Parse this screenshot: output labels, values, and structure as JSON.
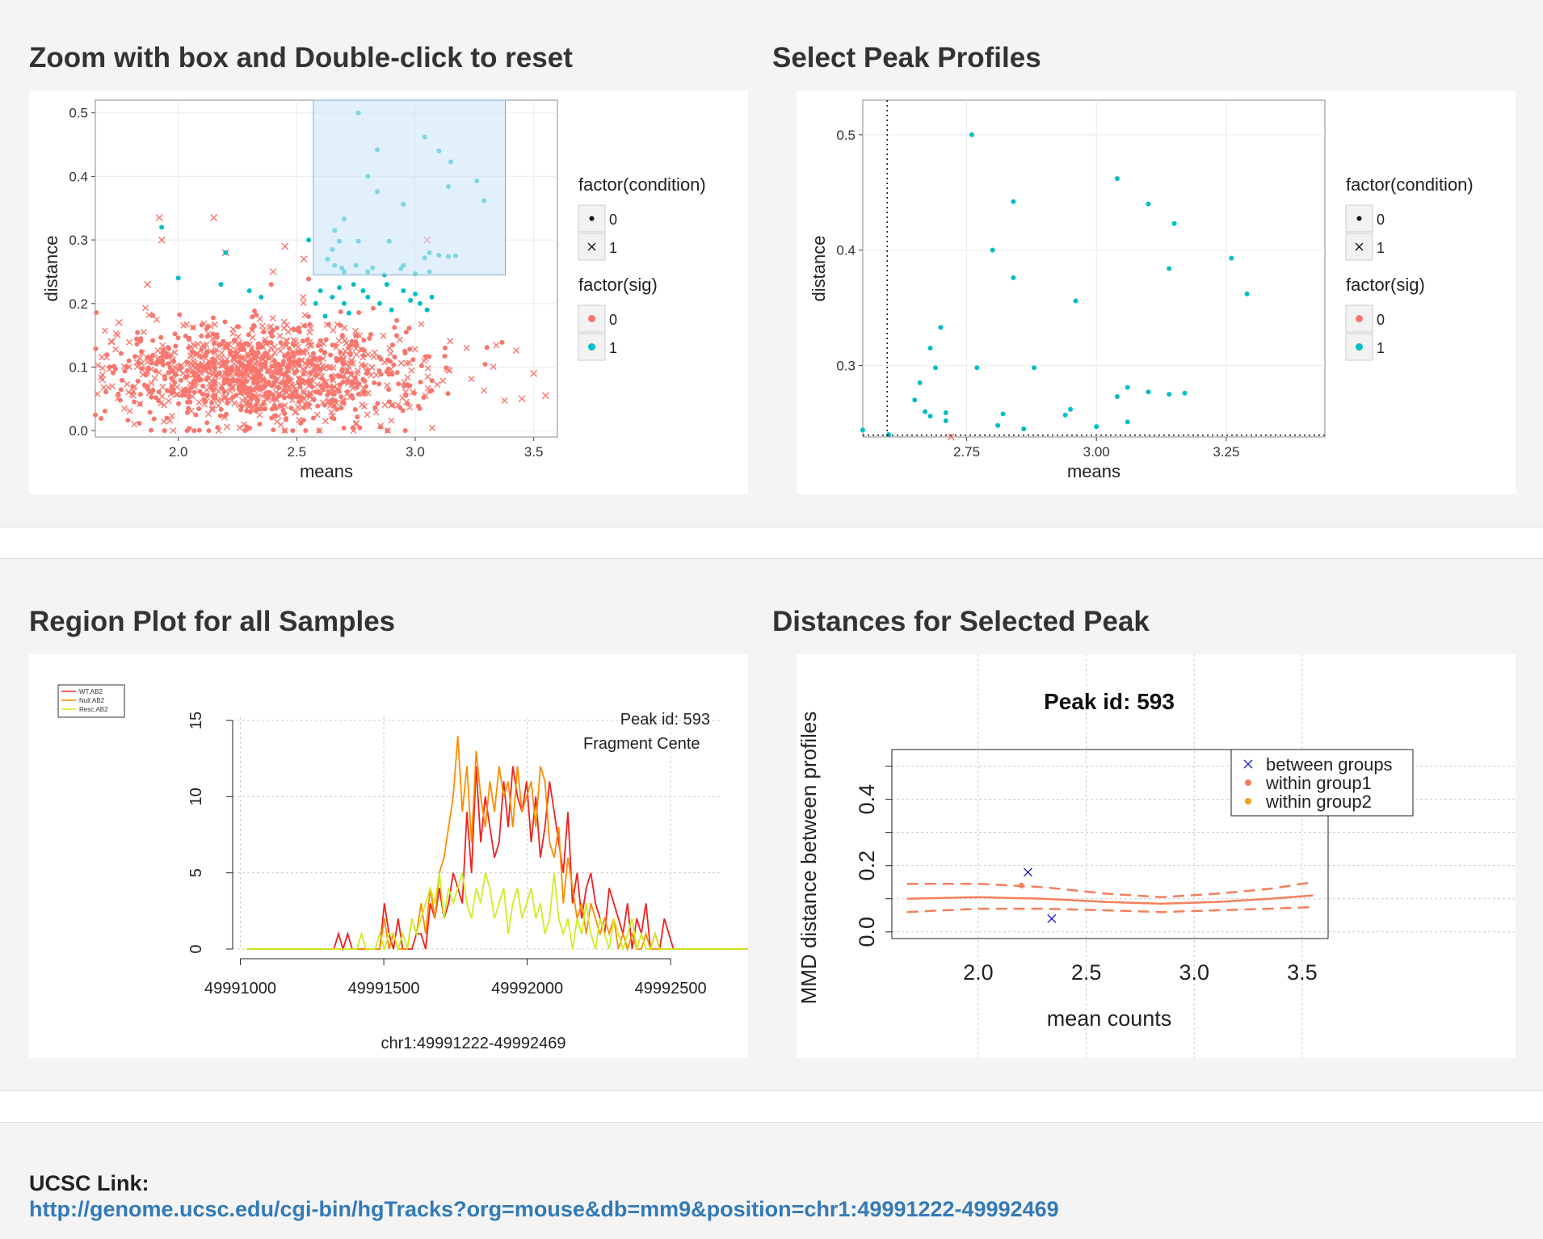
{
  "titles": {
    "zoom": "Zoom with box and Double-click to reset",
    "select": "Select Peak Profiles",
    "region": "Region Plot for all Samples",
    "distances": "Distances for Selected Peak"
  },
  "ucsc": {
    "label": "UCSC Link:",
    "url": "http://genome.ucsc.edu/cgi-bin/hgTracks?org=mouse&db=mm9&position=chr1:49991222-49992469"
  },
  "colors": {
    "sig0": "#f8766d",
    "sig1": "#00bfc4",
    "link": "#337ab7",
    "brush": "#cfe6fa"
  },
  "chart_data": [
    {
      "id": "zoom",
      "type": "scatter",
      "xlabel": "means",
      "ylabel": "distance",
      "xlim": [
        1.65,
        3.6
      ],
      "ylim": [
        -0.01,
        0.52
      ],
      "xticks": [
        "2.0",
        "2.5",
        "3.0",
        "3.5"
      ],
      "xtick_values": [
        2.0,
        2.5,
        3.0,
        3.5
      ],
      "yticks": [
        "0.0",
        "0.1",
        "0.2",
        "0.3",
        "0.4",
        "0.5"
      ],
      "ytick_values": [
        0.0,
        0.1,
        0.2,
        0.3,
        0.4,
        0.5
      ],
      "brush": {
        "x": [
          2.57,
          3.38
        ],
        "y": [
          0.245,
          0.52
        ]
      },
      "legend": {
        "condition_title": "factor(condition)",
        "condition_levels": [
          "0",
          "1"
        ],
        "sig_title": "factor(sig)",
        "sig_levels": [
          "0",
          "1"
        ]
      },
      "cluster": {
        "n": 1300,
        "x_center": 2.35,
        "x_spread": 0.35,
        "y_center": 0.09,
        "y_spread": 0.04,
        "sig": "0"
      },
      "sig0_points": [
        [
          1.92,
          0.335
        ],
        [
          1.93,
          0.3
        ],
        [
          2.15,
          0.335
        ],
        [
          1.87,
          0.23
        ],
        [
          1.68,
          0.08
        ],
        [
          1.72,
          0.14
        ],
        [
          1.75,
          0.17
        ],
        [
          3.5,
          0.09
        ],
        [
          3.45,
          0.05
        ],
        [
          3.55,
          0.055
        ],
        [
          2.9,
          0.04
        ],
        [
          2.45,
          0.29
        ],
        [
          2.53,
          0.27
        ],
        [
          3.05,
          0.3
        ],
        [
          2.2,
          0.28
        ],
        [
          2.4,
          0.25
        ]
      ],
      "sig1_points": [
        [
          2.76,
          0.5
        ],
        [
          3.04,
          0.462
        ],
        [
          3.1,
          0.44
        ],
        [
          3.15,
          0.423
        ],
        [
          3.14,
          0.384
        ],
        [
          2.84,
          0.442
        ],
        [
          2.8,
          0.4
        ],
        [
          2.95,
          0.356
        ],
        [
          3.26,
          0.393
        ],
        [
          3.29,
          0.362
        ],
        [
          2.84,
          0.376
        ],
        [
          2.7,
          0.333
        ],
        [
          2.66,
          0.315
        ],
        [
          2.68,
          0.298
        ],
        [
          2.76,
          0.298
        ],
        [
          2.89,
          0.298
        ],
        [
          2.65,
          0.285
        ],
        [
          2.63,
          0.27
        ],
        [
          2.66,
          0.26
        ],
        [
          2.69,
          0.256
        ],
        [
          2.7,
          0.25
        ],
        [
          2.75,
          0.26
        ],
        [
          2.82,
          0.256
        ],
        [
          2.8,
          0.25
        ],
        [
          2.87,
          0.245
        ],
        [
          2.95,
          0.26
        ],
        [
          2.94,
          0.255
        ],
        [
          3.0,
          0.247
        ],
        [
          3.04,
          0.272
        ],
        [
          3.06,
          0.28
        ],
        [
          3.1,
          0.276
        ],
        [
          3.14,
          0.274
        ],
        [
          3.17,
          0.275
        ],
        [
          3.06,
          0.25
        ],
        [
          1.93,
          0.32
        ],
        [
          2.0,
          0.24
        ],
        [
          2.2,
          0.28
        ],
        [
          2.18,
          0.23
        ],
        [
          2.3,
          0.22
        ],
        [
          2.35,
          0.21
        ],
        [
          2.55,
          0.3
        ],
        [
          2.58,
          0.2
        ],
        [
          2.6,
          0.22
        ],
        [
          2.62,
          0.18
        ],
        [
          2.65,
          0.21
        ],
        [
          2.7,
          0.2
        ],
        [
          2.72,
          0.185
        ],
        [
          2.8,
          0.21
        ],
        [
          2.85,
          0.2
        ],
        [
          2.9,
          0.19
        ],
        [
          2.95,
          0.22
        ],
        [
          3.0,
          0.215
        ],
        [
          3.02,
          0.2
        ],
        [
          3.05,
          0.19
        ],
        [
          2.88,
          0.23
        ],
        [
          2.78,
          0.22
        ],
        [
          2.98,
          0.205
        ],
        [
          3.07,
          0.21
        ],
        [
          2.68,
          0.225
        ],
        [
          2.74,
          0.23
        ]
      ]
    },
    {
      "id": "select",
      "type": "scatter",
      "xlabel": "means",
      "ylabel": "distance",
      "xlim": [
        2.55,
        3.44
      ],
      "ylim": [
        0.238,
        0.53
      ],
      "xticks": [
        "2.75",
        "3.00",
        "3.25"
      ],
      "xtick_values": [
        2.75,
        3.0,
        3.25
      ],
      "yticks": [
        "0.3",
        "0.4",
        "0.5"
      ],
      "ytick_values": [
        0.3,
        0.4,
        0.5
      ],
      "crosshair": {
        "x": 2.597,
        "y": 0.2395
      },
      "legend": {
        "condition_title": "factor(condition)",
        "condition_levels": [
          "0",
          "1"
        ],
        "sig_title": "factor(sig)",
        "sig_levels": [
          "0",
          "1"
        ]
      },
      "sig1_points": [
        [
          2.76,
          0.5
        ],
        [
          3.04,
          0.462
        ],
        [
          3.1,
          0.44
        ],
        [
          3.15,
          0.423
        ],
        [
          3.14,
          0.384
        ],
        [
          2.84,
          0.442
        ],
        [
          2.8,
          0.4
        ],
        [
          2.96,
          0.356
        ],
        [
          3.26,
          0.393
        ],
        [
          3.29,
          0.362
        ],
        [
          2.84,
          0.376
        ],
        [
          2.7,
          0.333
        ],
        [
          2.68,
          0.315
        ],
        [
          2.69,
          0.298
        ],
        [
          2.77,
          0.298
        ],
        [
          2.88,
          0.298
        ],
        [
          2.66,
          0.285
        ],
        [
          2.65,
          0.27
        ],
        [
          2.67,
          0.26
        ],
        [
          2.68,
          0.256
        ],
        [
          2.71,
          0.259
        ],
        [
          2.71,
          0.252
        ],
        [
          2.82,
          0.258
        ],
        [
          2.81,
          0.248
        ],
        [
          2.86,
          0.245
        ],
        [
          2.94,
          0.257
        ],
        [
          2.95,
          0.262
        ],
        [
          3.0,
          0.247
        ],
        [
          3.04,
          0.273
        ],
        [
          3.06,
          0.281
        ],
        [
          3.1,
          0.277
        ],
        [
          3.14,
          0.275
        ],
        [
          3.17,
          0.276
        ],
        [
          3.06,
          0.251
        ],
        [
          2.55,
          0.244
        ],
        [
          2.6,
          0.24
        ],
        [
          2.91,
          0.235
        ]
      ],
      "sig0_crosses": [
        [
          2.72,
          0.237
        ]
      ]
    },
    {
      "id": "region",
      "type": "line",
      "xlabel": "chr1:49991222-49992469",
      "ylabel": "",
      "xlim": [
        49990990,
        49992680
      ],
      "ylim": [
        0,
        15
      ],
      "xticks": [
        "49991000",
        "49991500",
        "49992000",
        "49992500"
      ],
      "xtick_values": [
        49991000,
        49991500,
        49992000,
        49992500
      ],
      "yticks": [
        "0",
        "5",
        "10",
        "15"
      ],
      "ytick_values": [
        0,
        5,
        10,
        15
      ],
      "annotations": [
        "Peak id: 593",
        "Fragment Cente"
      ],
      "x_start": 49991022,
      "x_step": 16,
      "series": [
        {
          "name": "WT.AB2",
          "color": "#ee2222",
          "values": [
            0,
            0,
            0,
            0,
            0,
            0,
            0,
            0,
            0,
            0,
            0,
            0,
            0,
            0,
            0,
            0,
            0,
            0,
            0,
            0,
            1,
            0,
            1,
            0,
            0,
            0,
            0,
            0,
            0,
            0,
            3,
            1,
            0,
            2,
            0,
            0,
            0,
            1,
            1,
            0,
            3,
            2,
            4,
            2,
            3,
            5,
            4,
            3,
            9,
            5,
            12,
            7,
            10,
            8,
            6,
            7,
            11,
            8,
            12,
            10,
            9,
            11,
            7,
            10,
            6,
            8,
            11,
            9,
            7,
            5,
            9,
            3,
            5,
            2,
            4,
            5,
            3,
            2,
            1,
            4,
            3,
            2,
            1,
            3,
            0,
            2,
            1,
            3,
            0,
            1,
            0,
            2,
            1,
            0,
            0,
            0,
            0,
            0,
            0,
            0,
            0,
            0,
            0,
            0,
            0,
            0,
            0,
            0,
            0,
            0,
            0,
            0,
            0,
            0,
            0,
            0,
            0,
            0,
            0
          ]
        },
        {
          "name": "Null.AB2",
          "color": "#ff8c00",
          "values": [
            0,
            0,
            0,
            0,
            0,
            0,
            0,
            0,
            0,
            0,
            0,
            0,
            0,
            0,
            0,
            0,
            0,
            0,
            0,
            0,
            0,
            0,
            0,
            0,
            0,
            0,
            0,
            0,
            0,
            0,
            2,
            0,
            1,
            0,
            0,
            0,
            2,
            1,
            3,
            1,
            4,
            2,
            5,
            6,
            8,
            10,
            14,
            9,
            12,
            7,
            13,
            10,
            8,
            11,
            9,
            12,
            10,
            11,
            8,
            12,
            9,
            10,
            11,
            8,
            12,
            11,
            7,
            6,
            8,
            3,
            6,
            4,
            2,
            3,
            1,
            3,
            2,
            1,
            2,
            1,
            2,
            0,
            1,
            0,
            1,
            0,
            0,
            1,
            0,
            0,
            0,
            0,
            0,
            0,
            0,
            0,
            0,
            0,
            0,
            0,
            0,
            0,
            0,
            0,
            0,
            0,
            0,
            0,
            0,
            0,
            0,
            0,
            0,
            0,
            0,
            0,
            0,
            0
          ]
        },
        {
          "name": "Resc.AB2",
          "color": "#ccee22",
          "values": [
            0,
            0,
            0,
            0,
            0,
            0,
            0,
            0,
            0,
            0,
            0,
            0,
            0,
            0,
            0,
            0,
            0,
            0,
            0,
            0,
            0,
            0,
            0,
            0,
            0,
            1,
            0,
            0,
            0,
            1,
            0,
            1,
            1,
            0,
            1,
            0,
            2,
            1,
            2,
            3,
            4,
            3,
            5,
            2,
            4,
            3,
            4,
            5,
            3,
            2,
            4,
            3,
            5,
            4,
            2,
            3,
            4,
            1,
            3,
            4,
            2,
            3,
            4,
            2,
            3,
            1,
            2,
            5,
            2,
            1,
            2,
            0,
            2,
            1,
            3,
            1,
            0,
            2,
            1,
            0,
            2,
            1,
            0,
            1,
            2,
            0,
            1,
            0,
            0,
            1,
            0,
            0,
            0,
            0,
            0,
            0,
            0,
            0,
            0,
            0,
            0,
            0,
            0,
            0,
            0,
            0,
            0,
            0,
            0,
            0,
            0,
            0,
            0,
            0,
            0,
            0,
            0,
            0,
            0
          ]
        }
      ]
    },
    {
      "id": "distances",
      "type": "line",
      "title": "Peak id: 593",
      "xlabel": "mean counts",
      "ylabel": "MMD distance between profiles",
      "xlim": [
        1.6,
        3.62
      ],
      "ylim": [
        -0.02,
        0.55
      ],
      "xticks": [
        "2.0",
        "2.5",
        "3.0",
        "3.5"
      ],
      "xtick_values": [
        2.0,
        2.5,
        3.0,
        3.5
      ],
      "yticks": [
        "0.0",
        "0.2",
        "0.4"
      ],
      "ytick_values": [
        0.0,
        0.2,
        0.4
      ],
      "legend": [
        "between groups",
        "within group1",
        "within group2"
      ],
      "legend_colors": [
        "#2222cc",
        "#f4805a",
        "#f5a023"
      ],
      "between_groups": [
        [
          2.23,
          0.18
        ],
        [
          2.34,
          0.04
        ]
      ],
      "within_group1": [
        [
          2.2,
          0.14
        ]
      ],
      "series": [
        {
          "name": "mean",
          "values": [
            [
              1.67,
              0.1
            ],
            [
              2.0,
              0.105
            ],
            [
              2.3,
              0.1
            ],
            [
              2.6,
              0.09
            ],
            [
              2.85,
              0.085
            ],
            [
              3.1,
              0.09
            ],
            [
              3.35,
              0.1
            ],
            [
              3.55,
              0.11
            ]
          ]
        },
        {
          "name": "upper",
          "values": [
            [
              1.67,
              0.145
            ],
            [
              2.0,
              0.145
            ],
            [
              2.3,
              0.135
            ],
            [
              2.6,
              0.115
            ],
            [
              2.85,
              0.105
            ],
            [
              3.1,
              0.115
            ],
            [
              3.35,
              0.13
            ],
            [
              3.55,
              0.15
            ]
          ]
        },
        {
          "name": "lower",
          "values": [
            [
              1.67,
              0.06
            ],
            [
              2.0,
              0.07
            ],
            [
              2.3,
              0.07
            ],
            [
              2.6,
              0.065
            ],
            [
              2.85,
              0.06
            ],
            [
              3.1,
              0.065
            ],
            [
              3.35,
              0.07
            ],
            [
              3.55,
              0.075
            ]
          ]
        }
      ]
    }
  ]
}
